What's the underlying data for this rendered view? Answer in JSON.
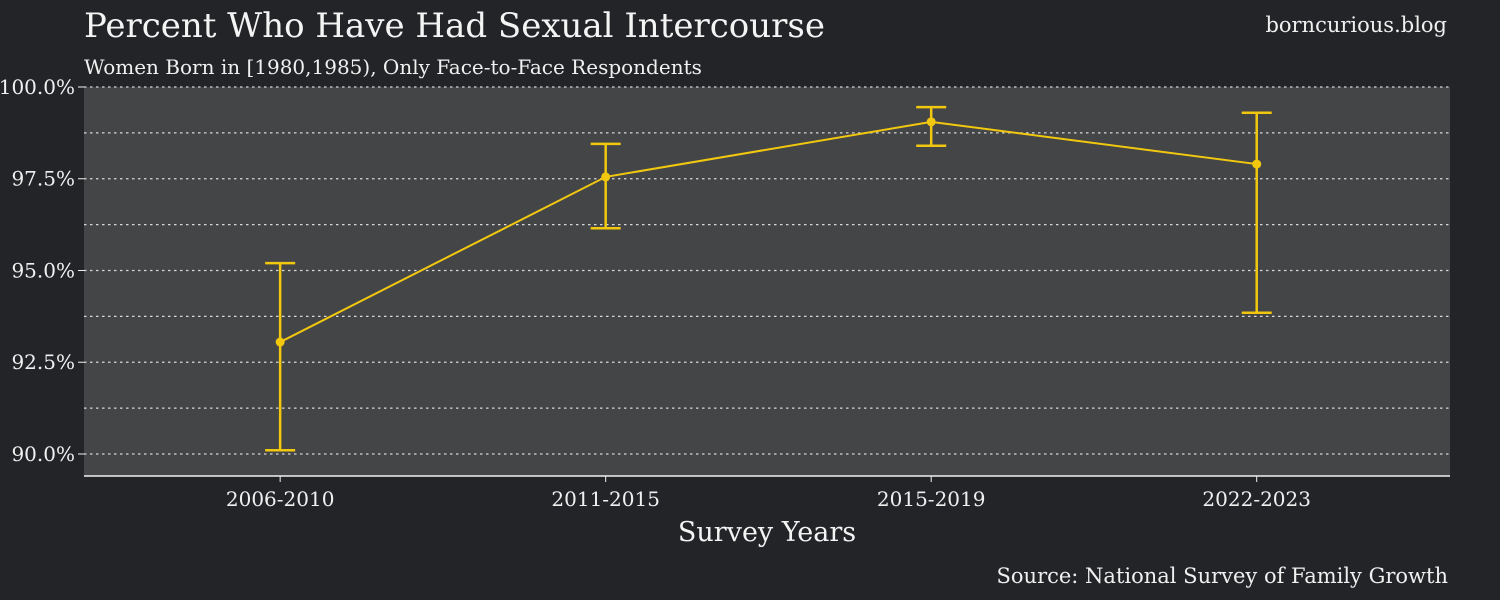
{
  "header": {
    "title": "Percent Who Have Had Sexual Intercourse",
    "subtitle": "Women Born in [1980,1985), Only Face-to-Face Respondents",
    "site": "borncurious.blog"
  },
  "footer": {
    "source": "Source: National Survey of Family Growth"
  },
  "colors": {
    "page_background": "#232427",
    "plot_background": "#444547",
    "series": "#f2c80f",
    "grid": "#d8d8d8",
    "text": "#f2f2f2"
  },
  "chart_data": {
    "type": "line",
    "title": "Percent Who Have Had Sexual Intercourse",
    "subtitle": "Women Born in [1980,1985), Only Face-to-Face Respondents",
    "xlabel": "Survey Years",
    "ylabel": "",
    "categories": [
      "2006-2010",
      "2011-2015",
      "2015-2019",
      "2022-2023"
    ],
    "series": [
      {
        "values": [
          93.05,
          97.55,
          99.05,
          97.9
        ],
        "error_low": [
          90.1,
          96.15,
          98.4,
          93.85
        ],
        "error_high": [
          95.2,
          98.45,
          99.45,
          99.3
        ]
      }
    ],
    "ylim": [
      89.4,
      100.0
    ],
    "yticks": [
      90.0,
      92.5,
      95.0,
      97.5,
      100.0
    ],
    "ytick_labels": [
      "90.0%",
      "92.5%",
      "95.0%",
      "97.5%",
      "100.0%"
    ],
    "minor_gridlines": [
      91.25,
      93.75,
      96.25,
      98.75
    ],
    "grid": true,
    "legend": "none"
  }
}
